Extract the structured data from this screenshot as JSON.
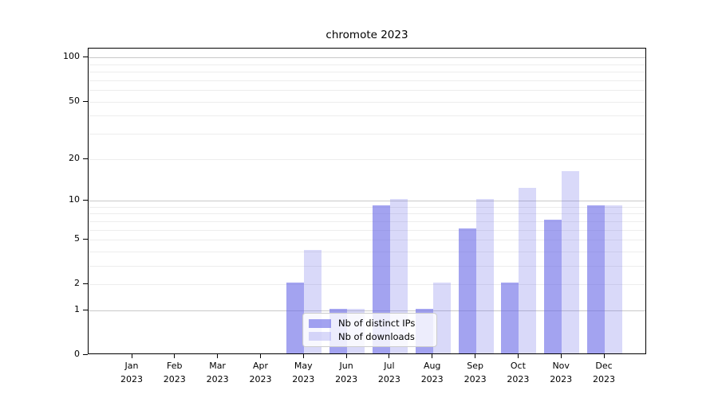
{
  "figure": {
    "background": "#ffffff"
  },
  "chart_data": {
    "type": "bar",
    "title": "chromote 2023",
    "categories_month": [
      "Jan",
      "Feb",
      "Mar",
      "Apr",
      "May",
      "Jun",
      "Jul",
      "Aug",
      "Sep",
      "Oct",
      "Nov",
      "Dec"
    ],
    "categories_year": "2023",
    "series": [
      {
        "name": "Nb of distinct IPs",
        "color": "#6666e6",
        "alpha": 0.6,
        "values": [
          0,
          0,
          0,
          0,
          2,
          1,
          9,
          1,
          6,
          2,
          7,
          9
        ]
      },
      {
        "name": "Nb of downloads",
        "color": "#6666e6",
        "alpha": 0.25,
        "values": [
          0,
          0,
          0,
          0,
          4,
          1,
          10,
          2,
          10,
          12,
          16,
          9
        ]
      }
    ],
    "yscale": "log1p",
    "ylim": [
      0,
      115
    ],
    "yticks_labeled": [
      0,
      1,
      2,
      5,
      10,
      20,
      50,
      100
    ],
    "yticks_minor": [
      3,
      4,
      6,
      7,
      8,
      9,
      30,
      40,
      60,
      70,
      80,
      90
    ],
    "ymajor_grid": [
      1,
      10,
      100
    ],
    "grid": "on",
    "legend_position": "lower center (inside plot)",
    "axis_color": "#000000",
    "grid_major_color": "#c9c9c9",
    "grid_minor_color": "#ededed"
  }
}
